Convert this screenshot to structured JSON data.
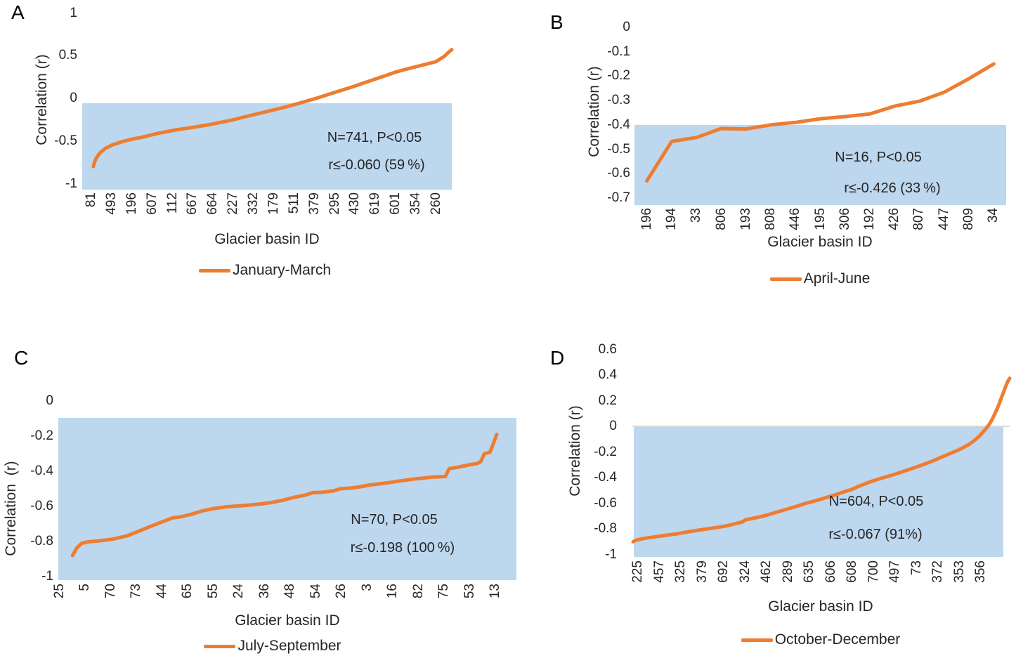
{
  "figure_background": "#ffffff",
  "colors": {
    "series_orange": "#ED7D31",
    "band_blue": "#BDD7EE",
    "zero_line_gray": "#D9D9D9",
    "text": "#262626"
  },
  "chart_data": [
    {
      "panel": "A",
      "type": "line",
      "series_name": "January-March",
      "ylabel": "Correlation (r)",
      "xlabel": "Glacier basin ID",
      "ylim": [
        -1,
        1
      ],
      "grid": false,
      "legend_position": "bottom",
      "annotation_n": "N=741, P<0.05",
      "annotation_threshold": "r≤-0.060 (59 %)",
      "n": 741,
      "threshold_r": -0.06,
      "percent_below": "59 %",
      "shaded_band_r": [
        -0.06,
        -1
      ],
      "y_tick_labels": [
        "1",
        "0.5",
        "0",
        "-0.5",
        "-1"
      ],
      "y_tick_values": [
        1,
        0.5,
        0,
        -0.5,
        -1
      ],
      "x_tick_labels": [
        "81",
        "493",
        "196",
        "607",
        "112",
        "667",
        "664",
        "227",
        "332",
        "179",
        "511",
        "379",
        "295",
        "430",
        "619",
        "601",
        "354",
        "260"
      ],
      "points": [
        [
          0.03,
          -0.8
        ],
        [
          0.034,
          -0.74
        ],
        [
          0.038,
          -0.7
        ],
        [
          0.048,
          -0.64
        ],
        [
          0.063,
          -0.585
        ],
        [
          0.082,
          -0.545
        ],
        [
          0.11,
          -0.505
        ],
        [
          0.139,
          -0.475
        ],
        [
          0.158,
          -0.46
        ],
        [
          0.2,
          -0.415
        ],
        [
          0.253,
          -0.37
        ],
        [
          0.3,
          -0.34
        ],
        [
          0.348,
          -0.305
        ],
        [
          0.4,
          -0.26
        ],
        [
          0.443,
          -0.214
        ],
        [
          0.49,
          -0.165
        ],
        [
          0.538,
          -0.115
        ],
        [
          0.585,
          -0.06
        ],
        [
          0.633,
          0.0
        ],
        [
          0.68,
          0.065
        ],
        [
          0.728,
          0.13
        ],
        [
          0.775,
          0.2
        ],
        [
          0.823,
          0.27
        ],
        [
          0.85,
          0.31
        ],
        [
          0.88,
          0.345
        ],
        [
          0.918,
          0.387
        ],
        [
          0.956,
          0.428
        ],
        [
          0.979,
          0.49
        ],
        [
          0.994,
          0.55
        ],
        [
          1.0,
          0.57
        ]
      ]
    },
    {
      "panel": "B",
      "type": "line",
      "series_name": "April-June",
      "ylabel": "Correlation (r)",
      "xlabel": "Glacier basin ID",
      "ylim": [
        -0.7,
        0
      ],
      "grid": false,
      "legend_position": "bottom",
      "annotation_n": "N=16, P<0.05",
      "annotation_threshold": "r≤-0.426 (33 %)",
      "n": 16,
      "threshold_r": -0.426,
      "percent_below": "33 %",
      "shaded_band_r": [
        -0.4,
        -0.73
      ],
      "y_tick_labels": [
        "0",
        "-0.1",
        "-0.2",
        "-0.3",
        "-0.4",
        "-0.5",
        "-0.6",
        "-0.7"
      ],
      "y_tick_values": [
        0,
        -0.1,
        -0.2,
        -0.3,
        -0.4,
        -0.5,
        -0.6,
        -0.7
      ],
      "x_tick_labels": [
        "196",
        "194",
        "33",
        "806",
        "193",
        "808",
        "446",
        "195",
        "306",
        "192",
        "426",
        "807",
        "447",
        "809",
        "34"
      ],
      "points": [
        [
          0.0333,
          -0.63
        ],
        [
          0.1,
          -0.468
        ],
        [
          0.1667,
          -0.452
        ],
        [
          0.2333,
          -0.415
        ],
        [
          0.3,
          -0.417
        ],
        [
          0.3667,
          -0.4
        ],
        [
          0.4333,
          -0.39
        ],
        [
          0.5,
          -0.375
        ],
        [
          0.5667,
          -0.366
        ],
        [
          0.6333,
          -0.355
        ],
        [
          0.7,
          -0.323
        ],
        [
          0.7667,
          -0.303
        ],
        [
          0.8333,
          -0.266
        ],
        [
          0.9,
          -0.21
        ],
        [
          0.9667,
          -0.15
        ]
      ]
    },
    {
      "panel": "C",
      "type": "line",
      "series_name": "July-September",
      "ylabel": "Correlation  (r)",
      "xlabel": "Glacier basin ID",
      "ylim": [
        -1,
        0
      ],
      "grid": false,
      "legend_position": "bottom",
      "annotation_n": "N=70, P<0.05",
      "annotation_threshold": "r≤-0.198 (100 %)",
      "n": 70,
      "threshold_r": -0.198,
      "percent_below": "100 %",
      "shaded_band_r": [
        -0.1,
        -1.02
      ],
      "y_tick_labels": [
        "0",
        "-0.2",
        "-0.4",
        "-0.6",
        "-0.8",
        "-1"
      ],
      "y_tick_values": [
        0,
        -0.2,
        -0.4,
        -0.6,
        -0.8,
        -1
      ],
      "x_tick_labels": [
        "25",
        "5",
        "70",
        "73",
        "44",
        "65",
        "55",
        "24",
        "36",
        "48",
        "54",
        "26",
        "3",
        "16",
        "82",
        "75",
        "53",
        "13"
      ],
      "points": [
        [
          0.031,
          -0.88
        ],
        [
          0.041,
          -0.835
        ],
        [
          0.051,
          -0.81
        ],
        [
          0.065,
          -0.802
        ],
        [
          0.09,
          -0.796
        ],
        [
          0.115,
          -0.788
        ],
        [
          0.13,
          -0.78
        ],
        [
          0.15,
          -0.768
        ],
        [
          0.175,
          -0.742
        ],
        [
          0.2,
          -0.715
        ],
        [
          0.225,
          -0.69
        ],
        [
          0.25,
          -0.665
        ],
        [
          0.27,
          -0.658
        ],
        [
          0.29,
          -0.645
        ],
        [
          0.315,
          -0.625
        ],
        [
          0.34,
          -0.612
        ],
        [
          0.365,
          -0.603
        ],
        [
          0.39,
          -0.598
        ],
        [
          0.42,
          -0.592
        ],
        [
          0.445,
          -0.585
        ],
        [
          0.465,
          -0.578
        ],
        [
          0.49,
          -0.565
        ],
        [
          0.515,
          -0.548
        ],
        [
          0.54,
          -0.535
        ],
        [
          0.555,
          -0.522
        ],
        [
          0.575,
          -0.52
        ],
        [
          0.6,
          -0.512
        ],
        [
          0.615,
          -0.5
        ],
        [
          0.64,
          -0.495
        ],
        [
          0.66,
          -0.488
        ],
        [
          0.68,
          -0.478
        ],
        [
          0.7,
          -0.472
        ],
        [
          0.72,
          -0.465
        ],
        [
          0.74,
          -0.457
        ],
        [
          0.76,
          -0.45
        ],
        [
          0.78,
          -0.443
        ],
        [
          0.8,
          -0.438
        ],
        [
          0.815,
          -0.433
        ],
        [
          0.83,
          -0.432
        ],
        [
          0.845,
          -0.43
        ],
        [
          0.853,
          -0.385
        ],
        [
          0.87,
          -0.378
        ],
        [
          0.885,
          -0.37
        ],
        [
          0.9,
          -0.362
        ],
        [
          0.915,
          -0.355
        ],
        [
          0.922,
          -0.345
        ],
        [
          0.93,
          -0.3
        ],
        [
          0.942,
          -0.292
        ],
        [
          0.95,
          -0.24
        ],
        [
          0.957,
          -0.19
        ]
      ]
    },
    {
      "panel": "D",
      "type": "line",
      "series_name": "October-December",
      "ylabel": "Correlation (r)",
      "xlabel": "Glacier basin ID",
      "ylim": [
        -1,
        0.6
      ],
      "grid": false,
      "legend_position": "bottom",
      "zero_line": true,
      "annotation_n": "N=604, P<0.05",
      "annotation_threshold": "r≤-0.067 (91%)",
      "n": 604,
      "threshold_r": -0.067,
      "percent_below": "91%",
      "shaded_band_r": [
        0,
        -1.02
      ],
      "y_tick_labels": [
        "0.6",
        "0.4",
        "0.2",
        "0",
        "-0.2",
        "-0.4",
        "-0.6",
        "-0.8",
        "-1"
      ],
      "y_tick_values": [
        0.6,
        0.4,
        0.2,
        0,
        -0.2,
        -0.4,
        -0.6,
        -0.8,
        -1
      ],
      "x_tick_labels": [
        "225",
        "457",
        "325",
        "379",
        "692",
        "324",
        "462",
        "289",
        "635",
        "606",
        "608",
        "700",
        "497",
        "73",
        "372",
        "353",
        "356"
      ],
      "points": [
        [
          0.002,
          -0.9
        ],
        [
          0.01,
          -0.888
        ],
        [
          0.03,
          -0.875
        ],
        [
          0.06,
          -0.862
        ],
        [
          0.09,
          -0.85
        ],
        [
          0.12,
          -0.838
        ],
        [
          0.15,
          -0.822
        ],
        [
          0.18,
          -0.808
        ],
        [
          0.21,
          -0.795
        ],
        [
          0.24,
          -0.782
        ],
        [
          0.26,
          -0.77
        ],
        [
          0.275,
          -0.758
        ],
        [
          0.29,
          -0.748
        ],
        [
          0.3,
          -0.73
        ],
        [
          0.32,
          -0.718
        ],
        [
          0.34,
          -0.705
        ],
        [
          0.36,
          -0.69
        ],
        [
          0.38,
          -0.672
        ],
        [
          0.4,
          -0.655
        ],
        [
          0.42,
          -0.638
        ],
        [
          0.44,
          -0.62
        ],
        [
          0.46,
          -0.6
        ],
        [
          0.48,
          -0.585
        ],
        [
          0.5,
          -0.568
        ],
        [
          0.52,
          -0.55
        ],
        [
          0.54,
          -0.532
        ],
        [
          0.56,
          -0.512
        ],
        [
          0.58,
          -0.494
        ],
        [
          0.6,
          -0.468
        ],
        [
          0.62,
          -0.445
        ],
        [
          0.633,
          -0.43
        ],
        [
          0.66,
          -0.405
        ],
        [
          0.68,
          -0.388
        ],
        [
          0.7,
          -0.37
        ],
        [
          0.72,
          -0.35
        ],
        [
          0.74,
          -0.33
        ],
        [
          0.76,
          -0.31
        ],
        [
          0.78,
          -0.288
        ],
        [
          0.8,
          -0.265
        ],
        [
          0.82,
          -0.24
        ],
        [
          0.84,
          -0.215
        ],
        [
          0.86,
          -0.19
        ],
        [
          0.875,
          -0.168
        ],
        [
          0.89,
          -0.145
        ],
        [
          0.9,
          -0.125
        ],
        [
          0.91,
          -0.102
        ],
        [
          0.92,
          -0.075
        ],
        [
          0.928,
          -0.05
        ],
        [
          0.935,
          -0.025
        ],
        [
          0.942,
          0.0
        ],
        [
          0.95,
          0.035
        ],
        [
          0.958,
          0.08
        ],
        [
          0.965,
          0.125
        ],
        [
          0.972,
          0.175
        ],
        [
          0.979,
          0.23
        ],
        [
          0.985,
          0.275
        ],
        [
          0.99,
          0.315
        ],
        [
          0.995,
          0.35
        ],
        [
          1.0,
          0.375
        ]
      ]
    }
  ]
}
